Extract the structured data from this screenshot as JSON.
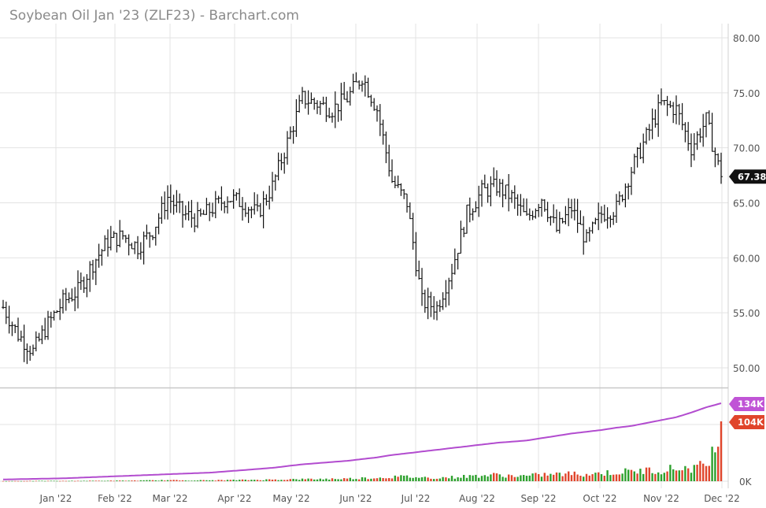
{
  "title": "Soybean Oil Jan '23 (ZLF23) - Barchart.com",
  "colors": {
    "grid": "#e3e3e3",
    "axis_text": "#555555",
    "price_bar": "#111111",
    "volume_up": "#2ca02c",
    "volume_down": "#e0452b",
    "open_interest": "#b24ccf",
    "last_price_bg": "#111111",
    "oi_badge": "#c054d6",
    "vol_badge": "#e0452b"
  },
  "chart_data": [
    {
      "type": "ohlc",
      "name": "price",
      "title": "Soybean Oil Jan '23 (ZLF23) - Barchart.com",
      "x_ticks": [
        "Jan '22",
        "Feb '22",
        "Mar '22",
        "Apr '22",
        "May '22",
        "Jun '22",
        "Jul '22",
        "Aug '22",
        "Sep '22",
        "Oct '22",
        "Nov '22",
        "Dec '22"
      ],
      "y_ticks": [
        "80.00",
        "75.00",
        "70.00",
        "65.00",
        "60.00",
        "55.00",
        "50.00"
      ],
      "ylim": [
        47.5,
        82.5
      ],
      "last_price": "67.38",
      "grid": true,
      "weekly_close": [
        55.5,
        53.0,
        51.5,
        54.0,
        56.0,
        57.0,
        59.5,
        61.5,
        62.0,
        61.0,
        62.5,
        65.5,
        64.0,
        63.5,
        64.5,
        65.5,
        65.0,
        64.0,
        66.5,
        70.5,
        74.5,
        74.0,
        73.5,
        74.5,
        76.5,
        73.5,
        67.0,
        65.0,
        56.0,
        55.5,
        59.0,
        64.0,
        66.0,
        66.5,
        65.5,
        63.5,
        65.5,
        62.5,
        64.5,
        61.5,
        64.0,
        64.5,
        68.0,
        71.0,
        74.0,
        73.5,
        70.0,
        72.5,
        67.38
      ]
    },
    {
      "type": "bar",
      "name": "volume",
      "y_ticks": [
        "0K"
      ],
      "last_volume": "104K",
      "last_open_interest": "134K",
      "volume_k": [
        0.3,
        0.4,
        0.5,
        0.6,
        0.5,
        0.7,
        0.8,
        0.9,
        1.0,
        1.2,
        1.5,
        1.8,
        1.6,
        1.5,
        1.7,
        2.0,
        2.2,
        2.5,
        2.8,
        3.2,
        3.5,
        3.8,
        4.2,
        4.5,
        5.5,
        6.0,
        7.5,
        8.0,
        6.5,
        6.0,
        7.0,
        8.5,
        10.0,
        11.0,
        9.5,
        9.0,
        11.5,
        12.0,
        13.0,
        12.5,
        14.0,
        15.5,
        17.0,
        18.5,
        20.0,
        22.0,
        24.0,
        27.0,
        104.0
      ],
      "open_interest_k": [
        3,
        3.5,
        4,
        4.5,
        5,
        6,
        7,
        8,
        9,
        10,
        11,
        12,
        13,
        14,
        15,
        17,
        19,
        21,
        23,
        26,
        29,
        31,
        33,
        35,
        38,
        41,
        45,
        48,
        51,
        54,
        57,
        60,
        63,
        66,
        68,
        70,
        74,
        78,
        82,
        85,
        88,
        92,
        95,
        100,
        105,
        110,
        118,
        127,
        134
      ]
    }
  ]
}
